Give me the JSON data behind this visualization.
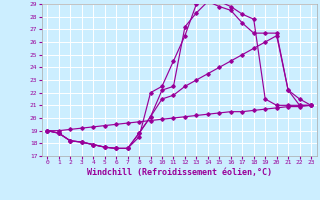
{
  "xlabel": "Windchill (Refroidissement éolien,°C)",
  "bg_color": "#cceeff",
  "grid_color": "#ffffff",
  "line_color": "#990099",
  "xlim": [
    -0.5,
    23.5
  ],
  "ylim": [
    17,
    29
  ],
  "xticks": [
    0,
    1,
    2,
    3,
    4,
    5,
    6,
    7,
    8,
    9,
    10,
    11,
    12,
    13,
    14,
    15,
    16,
    17,
    18,
    19,
    20,
    21,
    22,
    23
  ],
  "yticks": [
    17,
    18,
    19,
    20,
    21,
    22,
    23,
    24,
    25,
    26,
    27,
    28,
    29
  ],
  "line1_x": [
    0,
    1,
    2,
    3,
    4,
    5,
    6,
    7,
    8,
    9,
    10,
    11,
    12,
    13,
    14,
    15,
    16,
    17,
    18,
    19,
    20,
    21,
    22,
    23
  ],
  "line1_y": [
    19.0,
    18.8,
    18.2,
    18.1,
    17.9,
    17.7,
    17.6,
    17.6,
    18.8,
    20.1,
    22.2,
    22.5,
    27.2,
    28.3,
    29.2,
    29.2,
    28.8,
    28.2,
    27.8,
    21.5,
    21.0,
    21.0,
    21.0,
    21.0
  ],
  "line2_x": [
    0,
    1,
    2,
    3,
    4,
    5,
    6,
    7,
    8,
    9,
    10,
    11,
    12,
    13,
    14,
    15,
    16,
    17,
    18,
    19,
    20,
    21,
    22,
    23
  ],
  "line2_y": [
    19.0,
    19.0,
    19.1,
    19.2,
    19.3,
    19.4,
    19.5,
    19.6,
    19.7,
    19.8,
    19.9,
    20.0,
    20.1,
    20.2,
    20.3,
    20.4,
    20.5,
    20.5,
    20.6,
    20.7,
    20.8,
    20.9,
    20.9,
    21.0
  ],
  "line3_x": [
    0,
    1,
    2,
    3,
    4,
    5,
    6,
    7,
    8,
    9,
    10,
    11,
    12,
    13,
    14,
    15,
    16,
    17,
    18,
    19,
    20,
    21,
    22,
    23
  ],
  "line3_y": [
    19.0,
    18.8,
    18.2,
    18.1,
    17.9,
    17.7,
    17.6,
    17.6,
    18.5,
    22.0,
    22.5,
    24.5,
    26.5,
    29.0,
    29.2,
    28.8,
    28.5,
    27.5,
    26.7,
    26.7,
    26.7,
    22.2,
    21.0,
    21.0
  ],
  "line4_x": [
    0,
    1,
    2,
    3,
    4,
    5,
    6,
    7,
    8,
    9,
    10,
    11,
    12,
    13,
    14,
    15,
    16,
    17,
    18,
    19,
    20,
    21,
    22,
    23
  ],
  "line4_y": [
    19.0,
    18.8,
    18.2,
    18.1,
    17.9,
    17.7,
    17.6,
    17.6,
    18.8,
    20.1,
    21.5,
    21.8,
    22.5,
    23.0,
    23.5,
    24.0,
    24.5,
    25.0,
    25.5,
    26.0,
    26.5,
    22.2,
    21.5,
    21.0
  ],
  "marker": "D",
  "markersize": 1.8,
  "linewidth": 0.85,
  "xlabel_fontsize": 6.0,
  "tick_fontsize": 4.5
}
